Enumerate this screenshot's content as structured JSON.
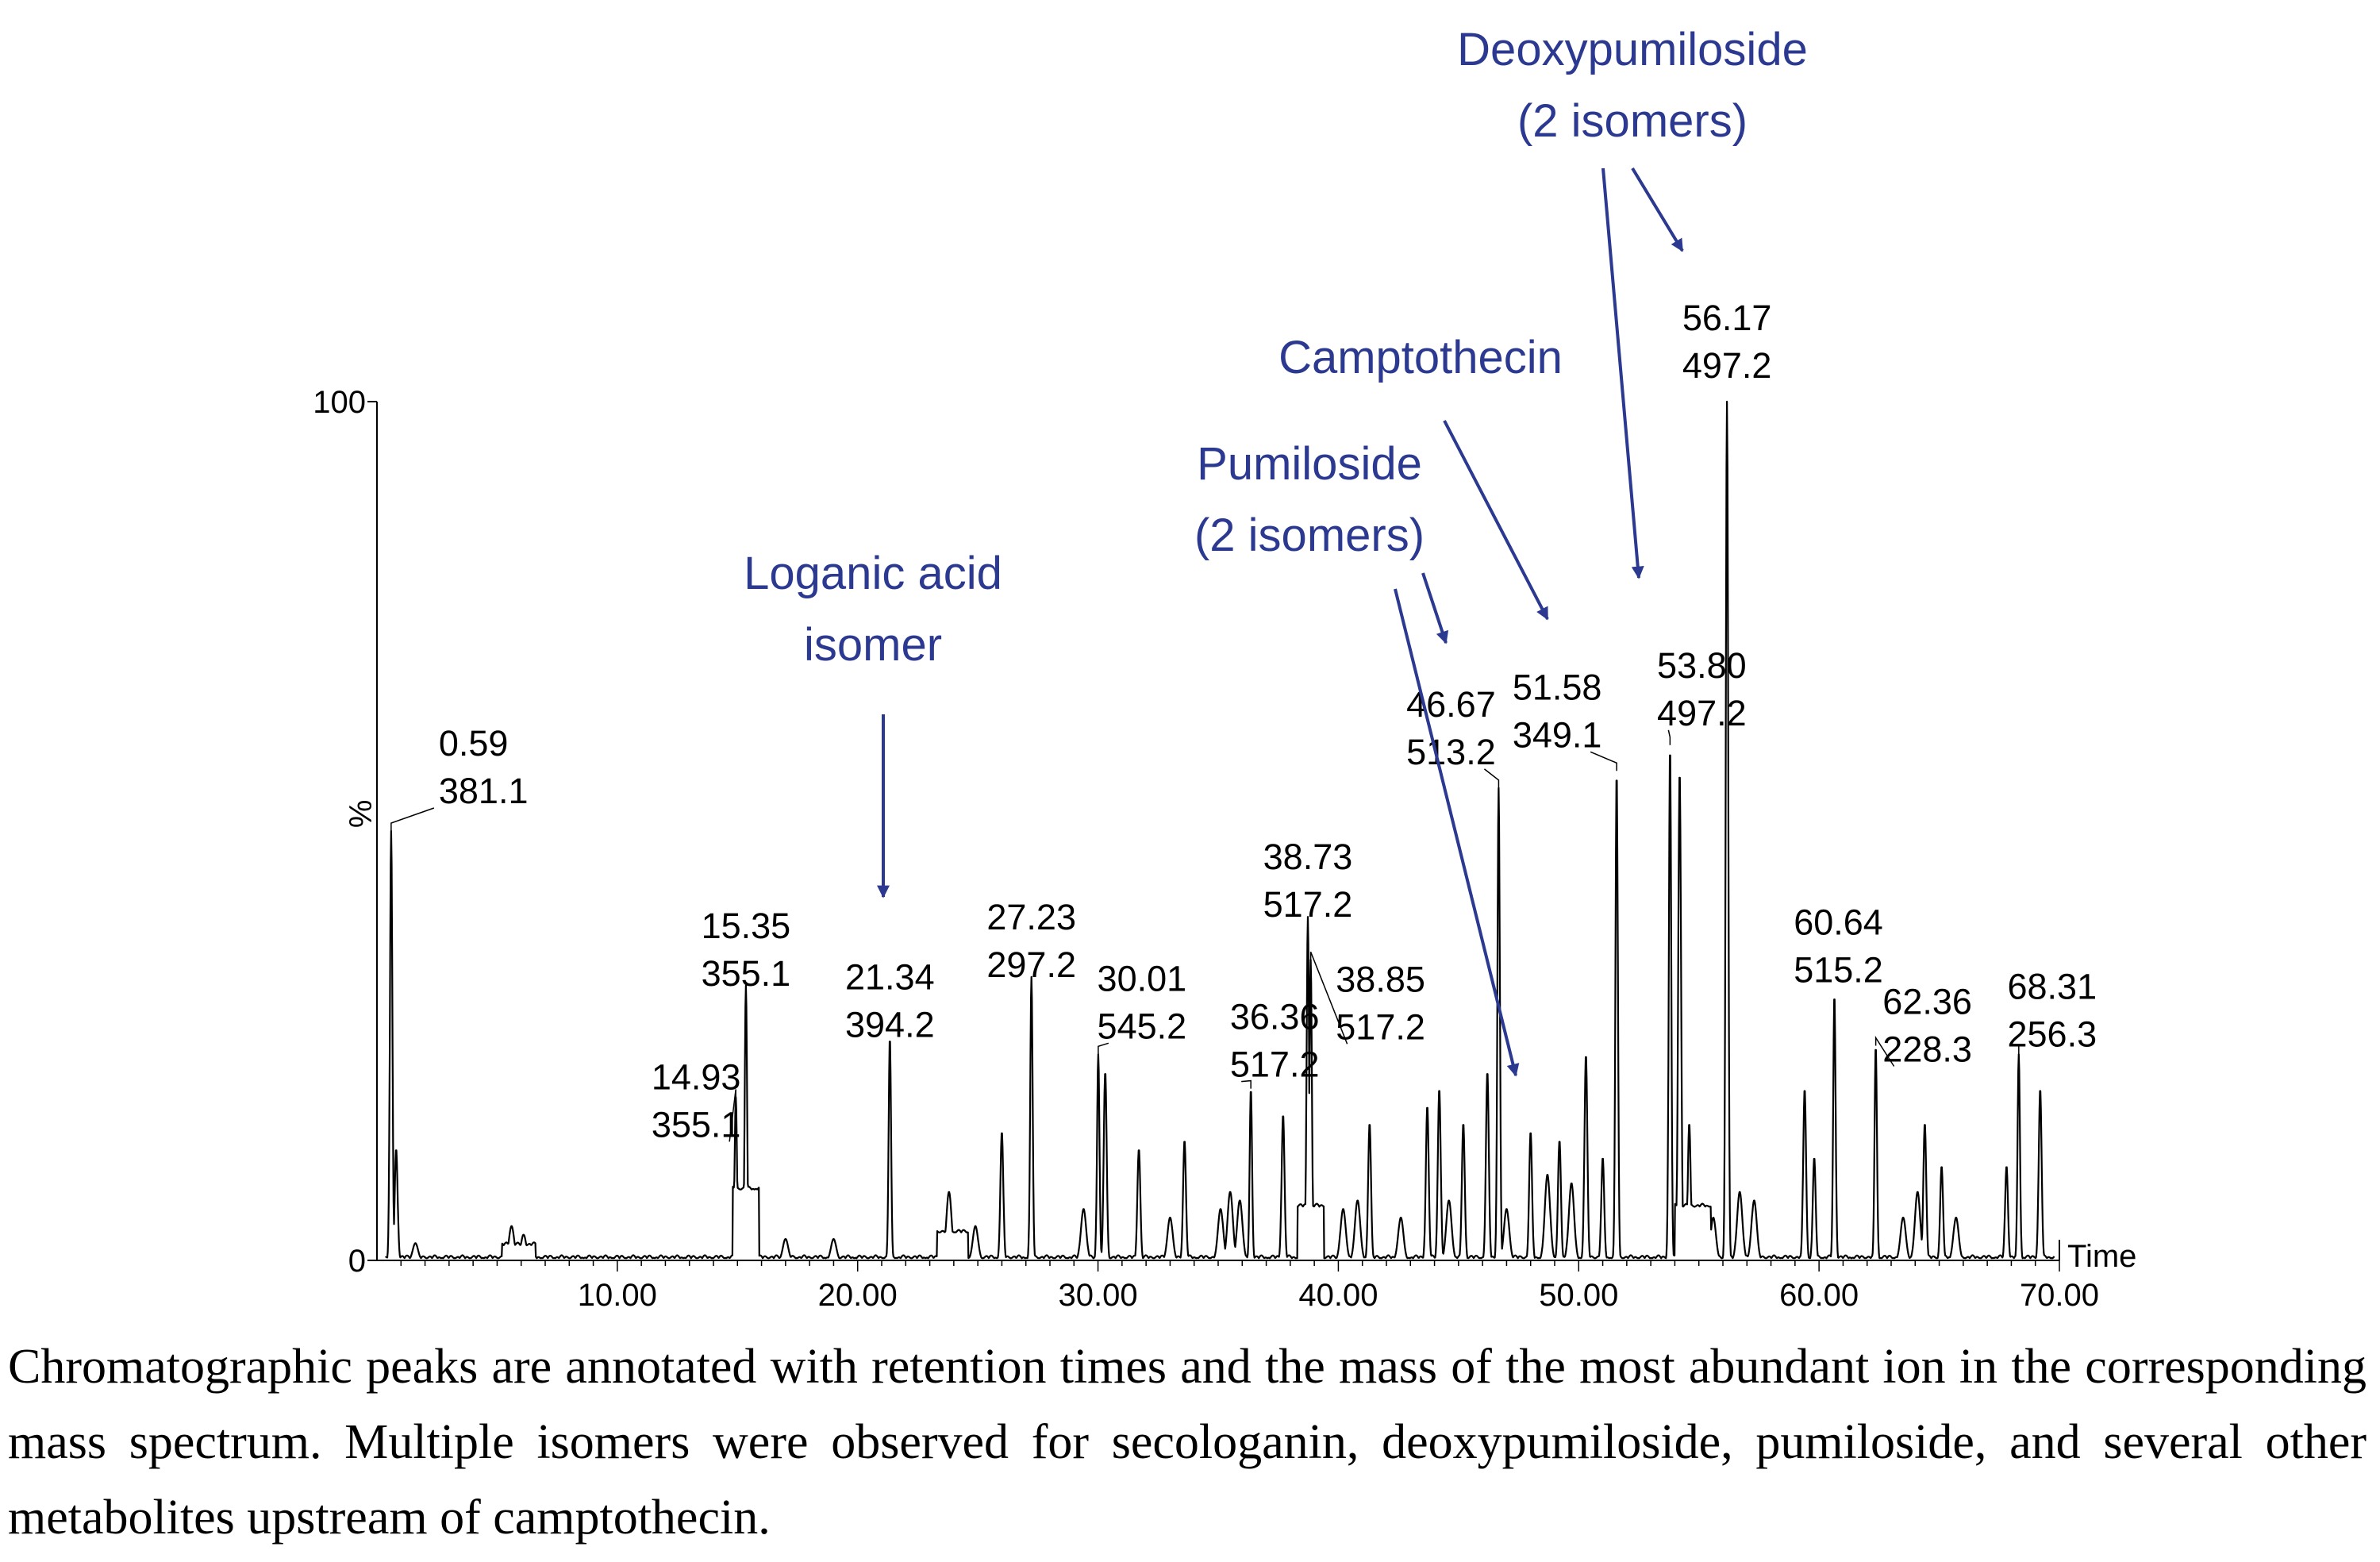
{
  "chart_data": {
    "type": "line",
    "xlabel": "Time",
    "ylabel": "%",
    "xlim": [
      0,
      70
    ],
    "ylim": [
      0,
      100
    ],
    "x_ticks": [
      "10.00",
      "20.00",
      "30.00",
      "40.00",
      "50.00",
      "60.00",
      "70.00"
    ],
    "y_ticks": [
      "0",
      "100"
    ],
    "peaks": [
      {
        "x": 0.59,
        "y": 50,
        "time": "0.59",
        "mass": "381.1"
      },
      {
        "x": 14.93,
        "y": 19,
        "time": "14.93",
        "mass": "355.1"
      },
      {
        "x": 15.35,
        "y": 32,
        "time": "15.35",
        "mass": "355.1"
      },
      {
        "x": 21.34,
        "y": 26,
        "time": "21.34",
        "mass": "394.2"
      },
      {
        "x": 27.23,
        "y": 33,
        "time": "27.23",
        "mass": "297.2"
      },
      {
        "x": 30.01,
        "y": 24,
        "time": "30.01",
        "mass": "545.2"
      },
      {
        "x": 36.36,
        "y": 20,
        "time": "36.36",
        "mass": "517.2"
      },
      {
        "x": 38.73,
        "y": 40,
        "time": "38.73",
        "mass": "517.2"
      },
      {
        "x": 38.85,
        "y": 35,
        "time": "38.85",
        "mass": "517.2"
      },
      {
        "x": 46.67,
        "y": 55,
        "time": "46.67",
        "mass": "513.2"
      },
      {
        "x": 51.58,
        "y": 57,
        "time": "51.58",
        "mass": "349.1"
      },
      {
        "x": 53.8,
        "y": 60,
        "time": "53.80",
        "mass": "497.2"
      },
      {
        "x": 56.17,
        "y": 100,
        "time": "56.17",
        "mass": "497.2"
      },
      {
        "x": 60.64,
        "y": 31,
        "time": "60.64",
        "mass": "515.2"
      },
      {
        "x": 62.36,
        "y": 25,
        "time": "62.36",
        "mass": "228.3"
      },
      {
        "x": 68.31,
        "y": 24,
        "time": "68.31",
        "mass": "256.3"
      }
    ],
    "minor_peaks": [
      [
        0.8,
        13
      ],
      [
        1.6,
        2
      ],
      [
        5.6,
        4
      ],
      [
        6.1,
        3
      ],
      [
        17.0,
        2.5
      ],
      [
        19.0,
        2.5
      ],
      [
        23.8,
        8
      ],
      [
        24.9,
        4
      ],
      [
        26.0,
        15
      ],
      [
        29.4,
        6
      ],
      [
        30.3,
        22
      ],
      [
        31.7,
        13
      ],
      [
        33.0,
        5
      ],
      [
        33.6,
        14
      ],
      [
        35.1,
        6
      ],
      [
        35.5,
        8
      ],
      [
        35.9,
        7
      ],
      [
        37.7,
        17
      ],
      [
        40.2,
        6
      ],
      [
        40.8,
        7
      ],
      [
        41.3,
        16
      ],
      [
        42.6,
        5
      ],
      [
        43.7,
        18
      ],
      [
        44.2,
        20
      ],
      [
        44.6,
        7
      ],
      [
        45.2,
        16
      ],
      [
        46.2,
        22
      ],
      [
        47.0,
        6
      ],
      [
        48.0,
        15
      ],
      [
        48.7,
        10
      ],
      [
        49.2,
        14
      ],
      [
        49.7,
        9
      ],
      [
        50.3,
        24
      ],
      [
        51.0,
        12
      ],
      [
        54.2,
        57
      ],
      [
        54.6,
        16
      ],
      [
        55.6,
        5
      ],
      [
        56.7,
        8
      ],
      [
        57.3,
        7
      ],
      [
        59.4,
        20
      ],
      [
        59.8,
        12
      ],
      [
        63.5,
        5
      ],
      [
        64.1,
        8
      ],
      [
        64.4,
        16
      ],
      [
        65.1,
        11
      ],
      [
        65.7,
        5
      ],
      [
        67.8,
        11
      ],
      [
        69.2,
        20
      ]
    ],
    "annotations": [
      {
        "lines": [
          "Loganic acid",
          "isomer"
        ]
      },
      {
        "lines": [
          "Pumiloside",
          "(2 isomers)"
        ]
      },
      {
        "lines": [
          "Camptothecin"
        ]
      },
      {
        "lines": [
          "Deoxypumiloside",
          "(2 isomers)"
        ]
      }
    ],
    "colors": {
      "trace": "#000000",
      "annotation": "#2b3990"
    }
  },
  "caption": "Chromatographic peaks are annotated with retention times and the mass of the most abundant ion in the corresponding mass spectrum. Multiple isomers were observed for secologanin, deoxypumiloside, pumiloside, and several other metabolites upstream of camptothecin."
}
